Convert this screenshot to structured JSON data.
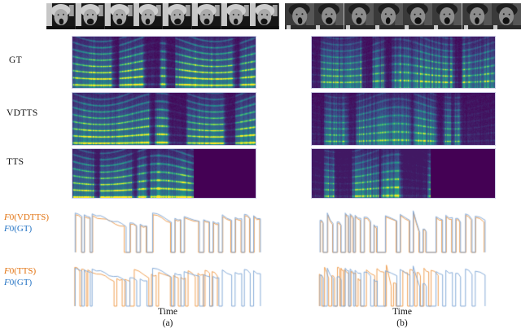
{
  "row_labels": [
    {
      "label": "GT"
    },
    {
      "label": "VDTTS"
    },
    {
      "label": "TTS"
    }
  ],
  "legends": [
    {
      "line1": "F0(VDTTS)",
      "line1_color": "#e2710d",
      "line2": "F0(GT)",
      "line2_color": "#2272c3"
    },
    {
      "line1": "F0(TTS)",
      "line1_color": "#e2710d",
      "line2": "F0(GT)",
      "line2_color": "#2272c3"
    }
  ],
  "columns": [
    {
      "xlabel": "Time",
      "caption": "(a)"
    },
    {
      "xlabel": "Time",
      "caption": "(b)"
    }
  ],
  "colors": {
    "f0_model_text": "#e2710d",
    "f0_gt_text": "#2272c3",
    "f0_model_line": "#ed9744",
    "f0_gt_line": "#7aa3d4",
    "spectrogram_bg": "#440154",
    "spectrogram_mid": "#21918c",
    "spectrogram_peak": "#fde725",
    "panel_border": "#cfd0e8"
  },
  "video_strips": [
    {
      "side": "a",
      "frames": 8,
      "tone": "light"
    },
    {
      "side": "b",
      "frames": 8,
      "tone": "dark"
    }
  ],
  "spectrograms": [
    {
      "row": "GT",
      "col": "a",
      "seed": 11,
      "active": 1.0,
      "harmonics": 0.95,
      "streaks": 0.45,
      "density": 0.62
    },
    {
      "row": "GT",
      "col": "b",
      "seed": 27,
      "active": 1.0,
      "harmonics": 0.55,
      "streaks": 0.95,
      "density": 0.55
    },
    {
      "row": "VDTTS",
      "col": "a",
      "seed": 12,
      "active": 1.0,
      "harmonics": 0.85,
      "streaks": 0.4,
      "density": 0.6
    },
    {
      "row": "VDTTS",
      "col": "b",
      "seed": 29,
      "active": 1.0,
      "harmonics": 0.5,
      "streaks": 0.85,
      "density": 0.55
    },
    {
      "row": "TTS",
      "col": "a",
      "seed": 13,
      "active": 0.66,
      "harmonics": 0.9,
      "streaks": 0.5,
      "density": 0.62
    },
    {
      "row": "TTS",
      "col": "b",
      "seed": 31,
      "active": 0.65,
      "harmonics": 0.55,
      "streaks": 0.9,
      "density": 0.58
    }
  ],
  "chart_data": [
    {
      "id": "f0-top-a",
      "type": "line",
      "xlabel": "Time",
      "column": "(a)",
      "note": "Pitch contours; segments are [x_start, x_end, level_start, level_end] normalized 0-1, baseline = unvoiced",
      "series": [
        {
          "name": "F0(VDTTS)",
          "color": "#ed9744",
          "segments": [
            [
              0.013,
              0.043,
              0.84,
              0.78
            ],
            [
              0.06,
              0.088,
              0.8,
              0.75
            ],
            [
              0.103,
              0.27,
              0.82,
              0.58
            ],
            [
              0.303,
              0.333,
              0.63,
              0.6
            ],
            [
              0.357,
              0.386,
              0.6,
              0.56
            ],
            [
              0.423,
              0.515,
              0.84,
              0.68
            ],
            [
              0.54,
              0.567,
              0.73,
              0.7
            ],
            [
              0.59,
              0.663,
              0.77,
              0.7
            ],
            [
              0.693,
              0.719,
              0.7,
              0.66
            ],
            [
              0.743,
              0.768,
              0.66,
              0.62
            ],
            [
              0.792,
              0.834,
              0.8,
              0.68
            ],
            [
              0.86,
              0.888,
              0.75,
              0.71
            ],
            [
              0.909,
              0.933,
              0.82,
              0.76
            ],
            [
              0.958,
              0.987,
              0.79,
              0.72
            ]
          ]
        },
        {
          "name": "F0(GT)",
          "color": "#7aa3d4",
          "segments": [
            [
              0.01,
              0.046,
              0.88,
              0.8
            ],
            [
              0.058,
              0.09,
              0.84,
              0.78
            ],
            [
              0.1,
              0.28,
              0.86,
              0.6
            ],
            [
              0.3,
              0.336,
              0.66,
              0.62
            ],
            [
              0.354,
              0.39,
              0.63,
              0.58
            ],
            [
              0.42,
              0.52,
              0.88,
              0.7
            ],
            [
              0.538,
              0.57,
              0.76,
              0.72
            ],
            [
              0.587,
              0.668,
              0.8,
              0.72
            ],
            [
              0.69,
              0.722,
              0.73,
              0.68
            ],
            [
              0.74,
              0.771,
              0.69,
              0.64
            ],
            [
              0.789,
              0.839,
              0.84,
              0.7
            ],
            [
              0.857,
              0.892,
              0.78,
              0.73
            ],
            [
              0.906,
              0.937,
              0.85,
              0.78
            ],
            [
              0.955,
              0.991,
              0.82,
              0.74
            ]
          ]
        }
      ]
    },
    {
      "id": "f0-top-b",
      "type": "line",
      "xlabel": "Time",
      "column": "(b)",
      "series": [
        {
          "name": "F0(VDTTS)",
          "color": "#ed9744",
          "segments": [
            [
              0.018,
              0.032,
              0.69,
              0.64
            ],
            [
              0.061,
              0.089,
              0.84,
              0.6
            ],
            [
              0.119,
              0.137,
              0.65,
              0.61
            ],
            [
              0.167,
              0.181,
              0.85,
              0.79
            ],
            [
              0.196,
              0.21,
              0.83,
              0.77
            ],
            [
              0.225,
              0.252,
              0.8,
              0.72
            ],
            [
              0.278,
              0.31,
              0.76,
              0.7
            ],
            [
              0.336,
              0.349,
              0.6,
              0.56
            ],
            [
              0.404,
              0.464,
              0.79,
              0.68
            ],
            [
              0.491,
              0.541,
              0.82,
              0.72
            ],
            [
              0.568,
              0.599,
              0.89,
              0.44
            ],
            [
              0.626,
              0.639,
              0.5,
              0.47
            ],
            [
              0.703,
              0.734,
              0.77,
              0.7
            ],
            [
              0.761,
              0.792,
              0.8,
              0.72
            ],
            [
              0.819,
              0.84,
              0.73,
              0.68
            ],
            [
              0.877,
              0.908,
              0.83,
              0.73
            ],
            [
              0.935,
              0.984,
              0.78,
              0.7
            ]
          ]
        },
        {
          "name": "F0(GT)",
          "color": "#7aa3d4",
          "segments": [
            [
              0.015,
              0.034,
              0.72,
              0.66
            ],
            [
              0.058,
              0.092,
              0.88,
              0.62
            ],
            [
              0.116,
              0.14,
              0.68,
              0.63
            ],
            [
              0.164,
              0.184,
              0.88,
              0.82
            ],
            [
              0.193,
              0.213,
              0.86,
              0.8
            ],
            [
              0.222,
              0.256,
              0.83,
              0.74
            ],
            [
              0.275,
              0.314,
              0.79,
              0.72
            ],
            [
              0.333,
              0.353,
              0.62,
              0.58
            ],
            [
              0.401,
              0.469,
              0.82,
              0.7
            ],
            [
              0.488,
              0.546,
              0.85,
              0.74
            ],
            [
              0.565,
              0.604,
              0.93,
              0.45
            ],
            [
              0.623,
              0.643,
              0.52,
              0.48
            ],
            [
              0.7,
              0.739,
              0.8,
              0.73
            ],
            [
              0.758,
              0.797,
              0.83,
              0.75
            ],
            [
              0.816,
              0.845,
              0.76,
              0.7
            ],
            [
              0.874,
              0.913,
              0.86,
              0.76
            ],
            [
              0.932,
              0.99,
              0.81,
              0.72
            ]
          ]
        }
      ]
    },
    {
      "id": "f0-bottom-a",
      "type": "line",
      "xlabel": "Time",
      "column": "(a)",
      "series": [
        {
          "name": "F0(TTS)",
          "color": "#ed9744",
          "segments": [
            [
              0.008,
              0.035,
              0.9,
              0.82
            ],
            [
              0.045,
              0.069,
              0.86,
              0.8
            ],
            [
              0.077,
              0.216,
              0.84,
              0.6
            ],
            [
              0.231,
              0.259,
              0.64,
              0.6
            ],
            [
              0.273,
              0.3,
              0.62,
              0.57
            ],
            [
              0.323,
              0.4,
              0.85,
              0.68
            ],
            [
              0.414,
              0.439,
              0.74,
              0.7
            ],
            [
              0.452,
              0.514,
              0.78,
              0.7
            ],
            [
              0.531,
              0.556,
              0.71,
              0.66
            ],
            [
              0.57,
              0.594,
              0.67,
              0.62
            ],
            [
              0.608,
              0.646,
              0.82,
              0.68
            ],
            [
              0.66,
              0.687,
              0.76,
              0.71
            ],
            [
              0.698,
              0.722,
              0.83,
              0.76
            ],
            [
              0.735,
              0.763,
              0.8,
              0.72
            ]
          ]
        },
        {
          "name": "F0(GT)",
          "color": "#7aa3d4",
          "segments": [
            [
              0.01,
              0.046,
              0.88,
              0.8
            ],
            [
              0.058,
              0.09,
              0.84,
              0.78
            ],
            [
              0.1,
              0.28,
              0.86,
              0.6
            ],
            [
              0.3,
              0.336,
              0.66,
              0.62
            ],
            [
              0.354,
              0.39,
              0.63,
              0.58
            ],
            [
              0.42,
              0.52,
              0.88,
              0.7
            ],
            [
              0.538,
              0.57,
              0.76,
              0.72
            ],
            [
              0.587,
              0.668,
              0.8,
              0.72
            ],
            [
              0.69,
              0.722,
              0.73,
              0.68
            ],
            [
              0.74,
              0.771,
              0.69,
              0.64
            ],
            [
              0.789,
              0.839,
              0.84,
              0.7
            ],
            [
              0.857,
              0.892,
              0.78,
              0.73
            ],
            [
              0.906,
              0.937,
              0.85,
              0.78
            ],
            [
              0.955,
              0.991,
              0.82,
              0.74
            ]
          ]
        }
      ]
    },
    {
      "id": "f0-bottom-b",
      "type": "line",
      "xlabel": "Time",
      "column": "(b)",
      "series": [
        {
          "name": "F0(TTS)",
          "color": "#ed9744",
          "segments": [
            [
              0.011,
              0.025,
              0.74,
              0.68
            ],
            [
              0.042,
              0.066,
              0.9,
              0.64
            ],
            [
              0.084,
              0.101,
              0.7,
              0.65
            ],
            [
              0.118,
              0.132,
              0.9,
              0.84
            ],
            [
              0.139,
              0.153,
              0.88,
              0.82
            ],
            [
              0.16,
              0.184,
              0.85,
              0.76
            ],
            [
              0.198,
              0.226,
              0.81,
              0.74
            ],
            [
              0.24,
              0.254,
              0.64,
              0.6
            ],
            [
              0.289,
              0.338,
              0.84,
              0.72
            ],
            [
              0.351,
              0.393,
              0.87,
              0.76
            ],
            [
              0.407,
              0.435,
              0.95,
              0.46
            ],
            [
              0.449,
              0.463,
              0.54,
              0.5
            ],
            [
              0.504,
              0.532,
              0.82,
              0.75
            ],
            [
              0.546,
              0.574,
              0.85,
              0.77
            ],
            [
              0.588,
              0.608,
              0.78,
              0.72
            ],
            [
              0.629,
              0.657,
              0.88,
              0.78
            ],
            [
              0.671,
              0.713,
              0.83,
              0.74
            ]
          ]
        },
        {
          "name": "F0(GT)",
          "color": "#7aa3d4",
          "segments": [
            [
              0.015,
              0.034,
              0.72,
              0.66
            ],
            [
              0.058,
              0.092,
              0.88,
              0.62
            ],
            [
              0.116,
              0.14,
              0.68,
              0.63
            ],
            [
              0.164,
              0.184,
              0.88,
              0.82
            ],
            [
              0.193,
              0.213,
              0.86,
              0.8
            ],
            [
              0.222,
              0.256,
              0.83,
              0.74
            ],
            [
              0.275,
              0.314,
              0.79,
              0.72
            ],
            [
              0.333,
              0.353,
              0.62,
              0.58
            ],
            [
              0.401,
              0.469,
              0.82,
              0.7
            ],
            [
              0.488,
              0.546,
              0.85,
              0.74
            ],
            [
              0.565,
              0.604,
              0.93,
              0.45
            ],
            [
              0.623,
              0.643,
              0.52,
              0.48
            ],
            [
              0.7,
              0.739,
              0.8,
              0.73
            ],
            [
              0.758,
              0.797,
              0.83,
              0.75
            ],
            [
              0.816,
              0.845,
              0.76,
              0.7
            ],
            [
              0.874,
              0.913,
              0.86,
              0.76
            ],
            [
              0.932,
              0.99,
              0.81,
              0.72
            ]
          ]
        }
      ]
    }
  ]
}
